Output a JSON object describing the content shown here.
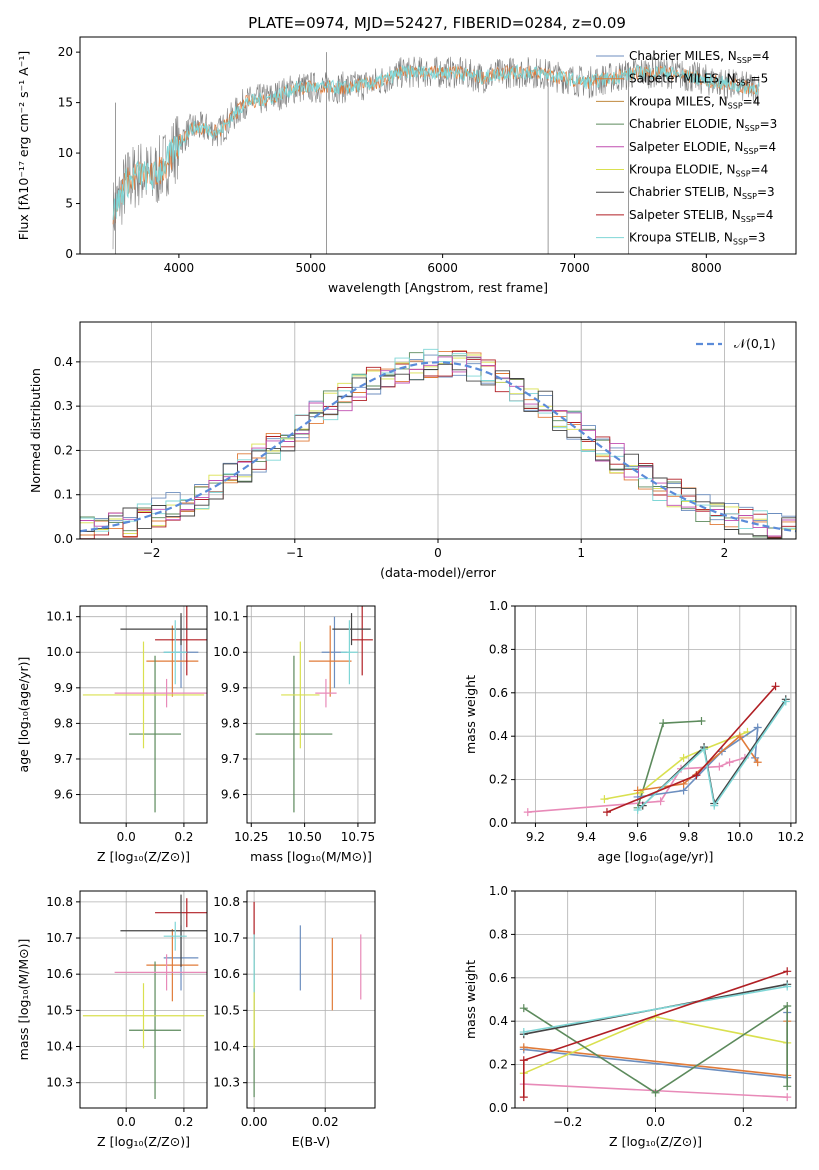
{
  "figure_title": "PLATE=0974, MJD=52427, FIBERID=0284, z=0.09",
  "colors": {
    "Chabrier MILES": "#6c8ebf",
    "Salpeter MILES": "#e07b39",
    "Kroupa MILES": "#c08a3e",
    "Chabrier ELODIE": "#5c8a5c",
    "Salpeter ELODIE": "#c04fb0",
    "Kroupa ELODIE": "#d9e04f",
    "Chabrier STELIB": "#444444",
    "Salpeter STELIB": "#b01f24",
    "Kroupa STELIB": "#7fd6d6",
    "normal": "#5b8bd9",
    "pink": "#e88ab8",
    "spectrum_gray": "#808080"
  },
  "chart_data": [
    {
      "id": "spectrum",
      "type": "line",
      "xlabel": "wavelength [Angstrom, rest frame]",
      "ylabel": "Flux [fλ10⁻¹⁷ erg cm⁻² s⁻¹ A⁻¹]",
      "xlim": [
        3250,
        8680
      ],
      "ylim": [
        0,
        21.5
      ],
      "xticks": [
        4000,
        5000,
        6000,
        7000,
        8000
      ],
      "yticks": [
        0,
        5,
        10,
        15,
        20
      ],
      "grid": false,
      "legend_position": "right",
      "legend": [
        {
          "name": "Chabrier MILES",
          "nssp": "4"
        },
        {
          "name": "Salpeter MILES",
          "nssp": "5"
        },
        {
          "name": "Kroupa MILES",
          "nssp": "4"
        },
        {
          "name": "Chabrier ELODIE",
          "nssp": "3"
        },
        {
          "name": "Salpeter ELODIE",
          "nssp": "4"
        },
        {
          "name": "Kroupa ELODIE",
          "nssp": "4"
        },
        {
          "name": "Chabrier STELIB",
          "nssp": "3"
        },
        {
          "name": "Salpeter STELIB",
          "nssp": "4"
        },
        {
          "name": "Kroupa STELIB",
          "nssp": "3"
        }
      ],
      "nssp_label": "N",
      "nssp_sub": "SSP",
      "continuum": {
        "x": [
          3500,
          3600,
          3700,
          3800,
          3900,
          4000,
          4100,
          4200,
          4300,
          4500,
          4700,
          4900,
          5100,
          5300,
          5500,
          5700,
          5900,
          6100,
          6300,
          6500,
          6700,
          6900,
          7100,
          7300,
          7500,
          7700,
          7900,
          8100,
          8300
        ],
        "y": [
          4,
          7,
          8,
          7.5,
          9,
          11,
          12.5,
          12.5,
          12,
          15,
          15.5,
          16.5,
          16.5,
          16.5,
          17,
          18,
          18,
          18,
          17.5,
          18,
          18,
          17.5,
          17,
          17.5,
          18,
          18,
          17.5,
          17,
          16.5
        ]
      }
    },
    {
      "id": "residuals",
      "type": "histogram",
      "xlabel": "(data-model)/error",
      "ylabel": "Normed distribution",
      "xlim": [
        -2.5,
        2.5
      ],
      "ylim": [
        0,
        0.49
      ],
      "xticks": [
        -2,
        -1,
        0,
        1,
        2
      ],
      "yticks": [
        0.0,
        0.1,
        0.2,
        0.3,
        0.4
      ],
      "grid": true,
      "legend": "𝒩(0,1)",
      "legend_position": "top-right",
      "bins": 50
    },
    {
      "id": "age_vs_Z",
      "type": "errorbar",
      "xlabel": "Z [log₁₀(Z/Z⊙)]",
      "ylabel": "age  [log₁₀(age/yr)]",
      "xlim": [
        -0.16,
        0.28
      ],
      "ylim": [
        9.52,
        10.13
      ],
      "xticks": [
        0.0,
        0.2
      ],
      "yticks": [
        9.6,
        9.7,
        9.8,
        9.9,
        10.0,
        10.1
      ],
      "grid": true,
      "points": [
        {
          "series": "Chabrier MILES",
          "x": 0.19,
          "xerr": 0.06,
          "y": 10.0,
          "yerr": 0.1
        },
        {
          "series": "Salpeter MILES",
          "x": 0.16,
          "xerr": 0.09,
          "y": 9.975,
          "yerr": 0.1
        },
        {
          "series": "Chabrier ELODIE",
          "x": 0.1,
          "xerr": 0.09,
          "y": 9.77,
          "yerr": 0.22
        },
        {
          "series": "Kroupa ELODIE",
          "x": 0.06,
          "xerr": 0.21,
          "y": 9.88,
          "yerr": 0.15
        },
        {
          "series": "pink",
          "x": 0.14,
          "xerr": 0.18,
          "y": 9.885,
          "yerr": 0.04
        },
        {
          "series": "Salpeter STELIB",
          "x": 0.21,
          "xerr": 0.11,
          "y": 10.035,
          "yerr": 0.1
        },
        {
          "series": "Chabrier STELIB",
          "x": 0.19,
          "xerr": 0.21,
          "y": 10.065,
          "yerr": 0.045
        },
        {
          "series": "Kroupa STELIB",
          "x": 0.17,
          "xerr": 0.04,
          "y": 10.0,
          "yerr": 0.09
        }
      ]
    },
    {
      "id": "age_vs_mass",
      "type": "errorbar",
      "xlabel": "mass [log₁₀(M/M⊙)]",
      "xlim": [
        10.23,
        10.83
      ],
      "ylim": [
        9.52,
        10.13
      ],
      "xticks": [
        10.25,
        10.5,
        10.75
      ],
      "yticks": [
        9.6,
        9.7,
        9.8,
        9.9,
        10.0,
        10.1
      ],
      "grid": true,
      "points": [
        {
          "series": "Chabrier MILES",
          "x": 10.64,
          "xerr": 0.06,
          "y": 10.0,
          "yerr": 0.1
        },
        {
          "series": "Salpeter MILES",
          "x": 10.62,
          "xerr": 0.1,
          "y": 9.975,
          "yerr": 0.1
        },
        {
          "series": "Chabrier ELODIE",
          "x": 10.45,
          "xerr": 0.18,
          "y": 9.77,
          "yerr": 0.22
        },
        {
          "series": "Kroupa ELODIE",
          "x": 10.48,
          "xerr": 0.09,
          "y": 9.88,
          "yerr": 0.15
        },
        {
          "series": "pink",
          "x": 10.6,
          "xerr": 0.05,
          "y": 9.885,
          "yerr": 0.04
        },
        {
          "series": "Salpeter STELIB",
          "x": 10.77,
          "xerr": 0.05,
          "y": 10.035,
          "yerr": 0.1
        },
        {
          "series": "Chabrier STELIB",
          "x": 10.72,
          "xerr": 0.09,
          "y": 10.065,
          "yerr": 0.045
        },
        {
          "series": "Kroupa STELIB",
          "x": 10.71,
          "xerr": 0.04,
          "y": 10.0,
          "yerr": 0.09
        }
      ]
    },
    {
      "id": "massweight_vs_age",
      "type": "line",
      "xlabel": "age  [log₁₀(age/yr)]",
      "ylabel": "mass weight",
      "xlim": [
        9.12,
        10.22
      ],
      "ylim": [
        0,
        1
      ],
      "xticks": [
        9.2,
        9.4,
        9.6,
        9.8,
        10.0,
        10.2
      ],
      "yticks": [
        0.0,
        0.2,
        0.4,
        0.6,
        0.8,
        1.0
      ],
      "grid": true,
      "series": [
        {
          "name": "pink",
          "x": [
            9.17,
            9.69,
            9.77,
            9.92,
            9.96,
            10.02
          ],
          "y": [
            0.05,
            0.1,
            0.25,
            0.26,
            0.28,
            0.3
          ]
        },
        {
          "name": "Chabrier ELODIE",
          "x": [
            9.6,
            9.7,
            9.85
          ],
          "y": [
            0.07,
            0.46,
            0.47
          ]
        },
        {
          "name": "Kroupa ELODIE",
          "x": [
            9.47,
            9.61,
            9.78,
            9.86,
            10.03
          ],
          "y": [
            0.11,
            0.14,
            0.3,
            0.34,
            0.42
          ]
        },
        {
          "name": "Chabrier MILES",
          "x": [
            9.6,
            9.78,
            9.93,
            10.07,
            10.06
          ],
          "y": [
            0.12,
            0.15,
            0.33,
            0.44,
            0.3
          ]
        },
        {
          "name": "Salpeter MILES",
          "x": [
            9.6,
            9.78,
            10.0,
            10.07
          ],
          "y": [
            0.15,
            0.18,
            0.4,
            0.28
          ]
        },
        {
          "name": "Chabrier STELIB",
          "x": [
            9.62,
            9.86,
            9.9,
            10.18
          ],
          "y": [
            0.08,
            0.35,
            0.09,
            0.57
          ]
        },
        {
          "name": "Kroupa STELIB",
          "x": [
            9.6,
            9.86,
            9.9,
            10.18
          ],
          "y": [
            0.06,
            0.34,
            0.08,
            0.56
          ]
        },
        {
          "name": "Salpeter STELIB",
          "x": [
            9.48,
            9.83,
            10.14
          ],
          "y": [
            0.05,
            0.22,
            0.63
          ]
        }
      ]
    },
    {
      "id": "mass_vs_Z",
      "type": "errorbar",
      "xlabel": "Z [log₁₀(Z/Z⊙)]",
      "ylabel": "mass [log₁₀(M/M⊙)]",
      "xlim": [
        -0.16,
        0.28
      ],
      "ylim": [
        10.23,
        10.83
      ],
      "xticks": [
        0.0,
        0.2
      ],
      "yticks": [
        10.3,
        10.4,
        10.5,
        10.6,
        10.7,
        10.8
      ],
      "grid": true,
      "points": [
        {
          "series": "Chabrier MILES",
          "x": 0.19,
          "xerr": 0.06,
          "y": 10.645,
          "yerr": 0.09
        },
        {
          "series": "Salpeter MILES",
          "x": 0.16,
          "xerr": 0.09,
          "y": 10.625,
          "yerr": 0.1
        },
        {
          "series": "Chabrier ELODIE",
          "x": 0.1,
          "xerr": 0.09,
          "y": 10.445,
          "yerr": 0.19
        },
        {
          "series": "Kroupa ELODIE",
          "x": 0.06,
          "xerr": 0.21,
          "y": 10.485,
          "yerr": 0.09
        },
        {
          "series": "pink",
          "x": 0.14,
          "xerr": 0.18,
          "y": 10.605,
          "yerr": 0.05
        },
        {
          "series": "Salpeter STELIB",
          "x": 0.21,
          "xerr": 0.11,
          "y": 10.77,
          "yerr": 0.04
        },
        {
          "series": "Chabrier STELIB",
          "x": 0.19,
          "xerr": 0.21,
          "y": 10.72,
          "yerr": 0.1
        },
        {
          "series": "Kroupa STELIB",
          "x": 0.17,
          "xerr": 0.04,
          "y": 10.705,
          "yerr": 0.04
        }
      ]
    },
    {
      "id": "mass_vs_ebv",
      "type": "errorbar",
      "xlabel": "E(B-V)",
      "xlim": [
        -0.002,
        0.034
      ],
      "ylim": [
        10.23,
        10.83
      ],
      "xticks": [
        0.0,
        0.02
      ],
      "yticks": [
        10.3,
        10.4,
        10.5,
        10.6,
        10.7,
        10.8
      ],
      "grid": true,
      "points": [
        {
          "series": "Chabrier MILES",
          "x": 0.013,
          "y": 10.645,
          "yerr": 0.09
        },
        {
          "series": "Salpeter MILES",
          "x": 0.022,
          "y": 10.6,
          "yerr": 0.1
        },
        {
          "series": "pink",
          "x": 0.03,
          "y": 10.62,
          "yerr": 0.09
        },
        {
          "series": "Chabrier ELODIE",
          "x": 0.0,
          "y": 10.45,
          "yerr": 0.19
        },
        {
          "series": "Kroupa ELODIE",
          "x": 0.0,
          "y": 10.485,
          "yerr": 0.09
        },
        {
          "series": "Salpeter STELIB",
          "x": 0.0,
          "y": 10.72,
          "yerr": 0.08
        },
        {
          "series": "Kroupa STELIB",
          "x": 0.0,
          "y": 10.63,
          "yerr": 0.08
        }
      ]
    },
    {
      "id": "massweight_vs_Z",
      "type": "line",
      "xlabel": "Z [log₁₀(Z/Z⊙)]",
      "ylabel": "mass weight",
      "xlim": [
        -0.32,
        0.32
      ],
      "ylim": [
        0,
        1
      ],
      "xticks": [
        -0.2,
        0.0,
        0.2
      ],
      "yticks": [
        0.0,
        0.2,
        0.4,
        0.6,
        0.8,
        1.0
      ],
      "grid": true,
      "series": [
        {
          "name": "pink",
          "x": [
            -0.3,
            0.3
          ],
          "y": [
            0.11,
            0.05
          ]
        },
        {
          "name": "Chabrier MILES",
          "x": [
            -0.3,
            0.3,
            0.3
          ],
          "y": [
            0.27,
            0.14,
            0.44
          ]
        },
        {
          "name": "Salpeter MILES",
          "x": [
            -0.3,
            0.3,
            0.3
          ],
          "y": [
            0.28,
            0.15,
            0.4
          ]
        },
        {
          "name": "Kroupa ELODIE",
          "x": [
            -0.3,
            0.0,
            0.3
          ],
          "y": [
            0.16,
            0.42,
            0.3
          ]
        },
        {
          "name": "Chabrier ELODIE",
          "x": [
            -0.3,
            0.0,
            0.3,
            0.3
          ],
          "y": [
            0.46,
            0.07,
            0.47,
            0.1
          ]
        },
        {
          "name": "Chabrier STELIB",
          "x": [
            -0.3,
            0.3
          ],
          "y": [
            0.34,
            0.57
          ]
        },
        {
          "name": "Kroupa STELIB",
          "x": [
            -0.3,
            0.3
          ],
          "y": [
            0.35,
            0.56
          ]
        },
        {
          "name": "Salpeter STELIB",
          "x": [
            -0.3,
            -0.3,
            0.3
          ],
          "y": [
            0.05,
            0.22,
            0.63
          ]
        }
      ]
    }
  ]
}
